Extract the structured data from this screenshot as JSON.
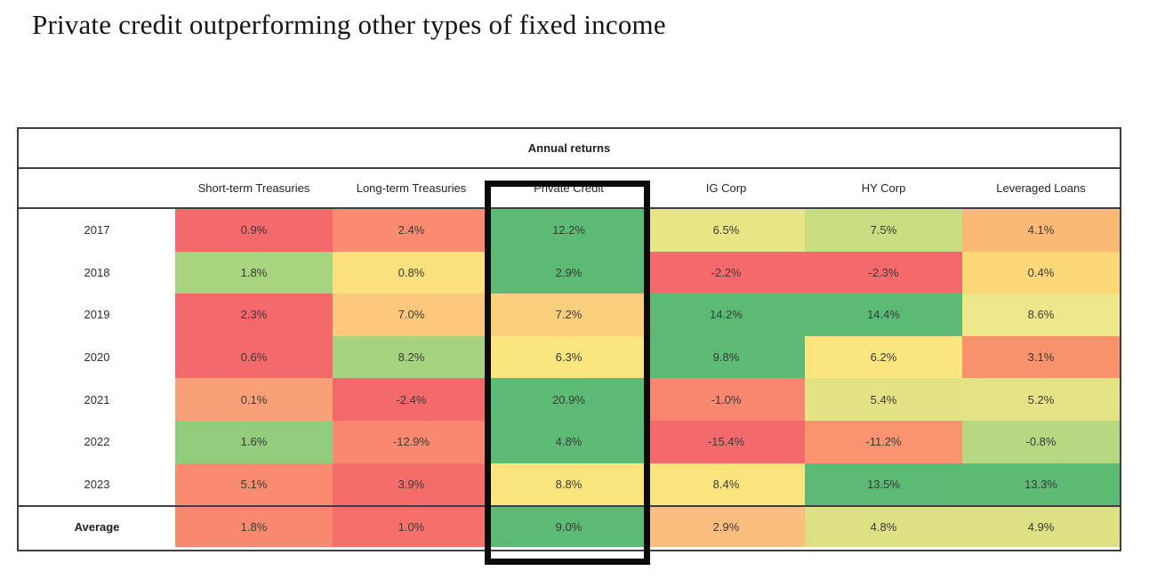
{
  "title": "Private credit outperforming other types of fixed income",
  "table": {
    "header": "Annual returns",
    "columns": [
      "Short-term Treasuries",
      "Long-term Treasuries",
      "Private Credit",
      "IG Corp",
      "HY Corp",
      "Leveraged Loans"
    ],
    "highlighted_column": "Private Credit",
    "rows": [
      {
        "label": "2017",
        "cells": [
          {
            "value": "0.9%",
            "color": "#f4696b"
          },
          {
            "value": "2.4%",
            "color": "#f98b70"
          },
          {
            "value": "12.2%",
            "color": "#5cba74"
          },
          {
            "value": "6.5%",
            "color": "#e8e584"
          },
          {
            "value": "7.5%",
            "color": "#c8dc81"
          },
          {
            "value": "4.1%",
            "color": "#fbb976"
          }
        ]
      },
      {
        "label": "2018",
        "cells": [
          {
            "value": "1.8%",
            "color": "#a8d37f"
          },
          {
            "value": "0.8%",
            "color": "#fbe17d"
          },
          {
            "value": "2.9%",
            "color": "#5cba74"
          },
          {
            "value": "-2.2%",
            "color": "#f4696b"
          },
          {
            "value": "-2.3%",
            "color": "#f4696b"
          },
          {
            "value": "0.4%",
            "color": "#fcd878"
          }
        ]
      },
      {
        "label": "2019",
        "cells": [
          {
            "value": "2.3%",
            "color": "#f4696b"
          },
          {
            "value": "7.0%",
            "color": "#fcc87b"
          },
          {
            "value": "7.2%",
            "color": "#fccf7d"
          },
          {
            "value": "14.2%",
            "color": "#5cba74"
          },
          {
            "value": "14.4%",
            "color": "#5cba74"
          },
          {
            "value": "8.6%",
            "color": "#eee789"
          }
        ]
      },
      {
        "label": "2020",
        "cells": [
          {
            "value": "0.6%",
            "color": "#f4696b"
          },
          {
            "value": "8.2%",
            "color": "#a6d37f"
          },
          {
            "value": "6.3%",
            "color": "#fae57f"
          },
          {
            "value": "9.8%",
            "color": "#5cba74"
          },
          {
            "value": "6.2%",
            "color": "#fae57f"
          },
          {
            "value": "3.1%",
            "color": "#f8926c"
          }
        ]
      },
      {
        "label": "2021",
        "cells": [
          {
            "value": "0.1%",
            "color": "#faa078"
          },
          {
            "value": "-2.4%",
            "color": "#f4696b"
          },
          {
            "value": "20.9%",
            "color": "#5cba74"
          },
          {
            "value": "-1.0%",
            "color": "#f8876f"
          },
          {
            "value": "5.4%",
            "color": "#e3e384"
          },
          {
            "value": "5.2%",
            "color": "#e5e484"
          }
        ]
      },
      {
        "label": "2022",
        "cells": [
          {
            "value": "1.6%",
            "color": "#92cc7d"
          },
          {
            "value": "-12.9%",
            "color": "#f9896e"
          },
          {
            "value": "4.8%",
            "color": "#5cba74"
          },
          {
            "value": "-15.4%",
            "color": "#f4696b"
          },
          {
            "value": "-11.2%",
            "color": "#fa936f"
          },
          {
            "value": "-0.8%",
            "color": "#b7d780"
          }
        ]
      },
      {
        "label": "2023",
        "cells": [
          {
            "value": "5.1%",
            "color": "#f98b6e"
          },
          {
            "value": "3.9%",
            "color": "#f56d6a"
          },
          {
            "value": "8.8%",
            "color": "#fae47e"
          },
          {
            "value": "8.4%",
            "color": "#fbe47d"
          },
          {
            "value": "13.5%",
            "color": "#5cba74"
          },
          {
            "value": "13.3%",
            "color": "#5ebb74"
          }
        ]
      },
      {
        "label": "Average",
        "cells": [
          {
            "value": "1.8%",
            "color": "#f9896e"
          },
          {
            "value": "1.0%",
            "color": "#f5706b"
          },
          {
            "value": "9.0%",
            "color": "#5cba74"
          },
          {
            "value": "2.9%",
            "color": "#fcbe7e"
          },
          {
            "value": "4.8%",
            "color": "#dde184"
          },
          {
            "value": "4.9%",
            "color": "#dde184"
          }
        ]
      }
    ]
  },
  "chart_data": {
    "type": "heatmap",
    "title": "Annual returns",
    "suptitle": "Private credit outperforming other types of fixed income",
    "rows": [
      "2017",
      "2018",
      "2019",
      "2020",
      "2021",
      "2022",
      "2023",
      "Average"
    ],
    "columns": [
      "Short-term Treasuries",
      "Long-term Treasuries",
      "Private Credit",
      "IG Corp",
      "HY Corp",
      "Leveraged Loans"
    ],
    "values": [
      [
        0.9,
        2.4,
        12.2,
        6.5,
        7.5,
        4.1
      ],
      [
        1.8,
        0.8,
        2.9,
        -2.2,
        -2.3,
        0.4
      ],
      [
        2.3,
        7.0,
        7.2,
        14.2,
        14.4,
        8.6
      ],
      [
        0.6,
        8.2,
        6.3,
        9.8,
        6.2,
        3.1
      ],
      [
        0.1,
        -2.4,
        20.9,
        -1.0,
        5.4,
        5.2
      ],
      [
        1.6,
        -12.9,
        4.8,
        -15.4,
        -11.2,
        -0.8
      ],
      [
        5.1,
        3.9,
        8.8,
        8.4,
        13.5,
        13.3
      ],
      [
        1.8,
        1.0,
        9.0,
        2.9,
        4.8,
        4.9
      ]
    ],
    "unit": "%",
    "color_scale": "red (low) to yellow (mid) to green (high)",
    "highlighted_column": "Private Credit",
    "legend_position": "none",
    "grid": false
  }
}
